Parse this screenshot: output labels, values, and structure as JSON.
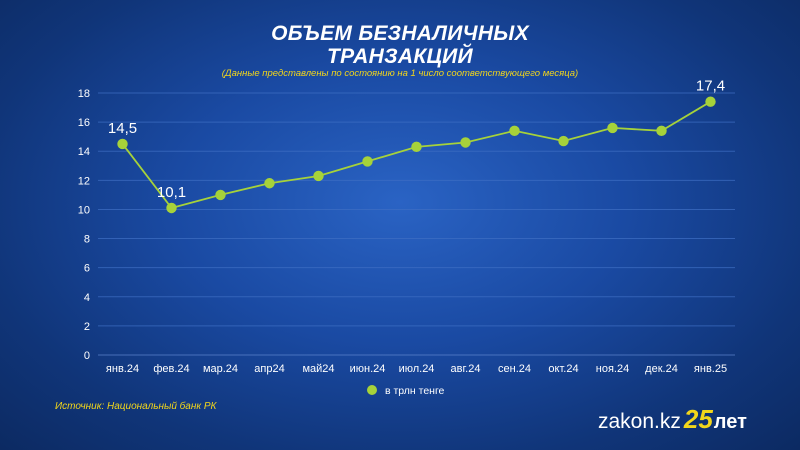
{
  "title_line1": "ОБЪЕМ БЕЗНАЛИЧНЫХ",
  "title_line2": "ТРАНЗАКЦИЙ",
  "subtitle": "(Данные представлены по состоянию на 1 число соответствующего месяца)",
  "source": "Источник: Национальный банк РК",
  "logo": {
    "text": "zakon.kz",
    "number": "25",
    "suffix": "лет"
  },
  "colors": {
    "line": "#a6d23a",
    "marker": "#a6d23a",
    "text": "#ffffff",
    "accent": "#f2d61b",
    "grid": "#3f6fc4"
  },
  "chart_data": {
    "type": "line",
    "categories": [
      "янв.24",
      "фев.24",
      "мар.24",
      "апр24",
      "май24",
      "июн.24",
      "июл.24",
      "авг.24",
      "сен.24",
      "окт.24",
      "ноя.24",
      "дек.24",
      "янв.25"
    ],
    "series": [
      {
        "name": "в трлн тенге",
        "values": [
          14.5,
          10.1,
          11.0,
          11.8,
          12.3,
          13.3,
          14.3,
          14.6,
          15.4,
          14.7,
          15.6,
          15.4,
          17.4
        ]
      }
    ],
    "data_labels": [
      {
        "index": 0,
        "text": "14,5"
      },
      {
        "index": 1,
        "text": "10,1"
      },
      {
        "index": 12,
        "text": "17,4"
      }
    ],
    "yticks": [
      0,
      2,
      4,
      6,
      8,
      10,
      12,
      14,
      16,
      18
    ],
    "ylim": [
      0,
      18
    ],
    "grid": true,
    "legend_position": "bottom"
  }
}
